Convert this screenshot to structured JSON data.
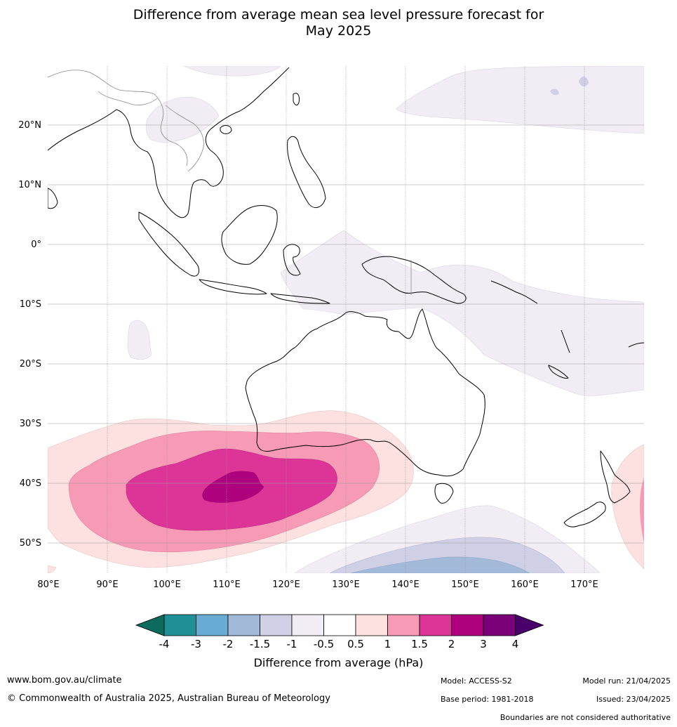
{
  "title_line1": "Difference from average mean sea level pressure forecast for",
  "title_line2": "May 2025",
  "map": {
    "lat_labels": [
      "20°N",
      "10°N",
      "0°",
      "10°S",
      "20°S",
      "30°S",
      "40°S",
      "50°S"
    ],
    "lon_labels": [
      "80°E",
      "90°E",
      "100°E",
      "110°E",
      "120°E",
      "130°E",
      "140°E",
      "150°E",
      "160°E",
      "170°E"
    ]
  },
  "colorbar": {
    "label": "Difference from average (hPa)",
    "ticks": [
      "-4",
      "-3",
      "-2",
      "-1.5",
      "-1",
      "-0.5",
      "0.5",
      "1",
      "1.5",
      "2",
      "3",
      "4"
    ],
    "colors": [
      "#0d6b5e",
      "#1f9196",
      "#68acd4",
      "#a3b9d8",
      "#cfcfe5",
      "#f2ecf4",
      "#ffffff",
      "#fde0e0",
      "#f69ab6",
      "#dd3497",
      "#ae017e",
      "#7a0177",
      "#49006a"
    ]
  },
  "footer": {
    "url": "www.bom.gov.au/climate",
    "copyright": "© Commonwealth of Australia 2025, Australian Bureau of Meteorology",
    "model": "Model: ACCESS-S2",
    "base_period": "Base period: 1981-2018",
    "model_run": "Model run: 21/04/2025",
    "issued": "Issued: 23/04/2025",
    "disclaimer": "Boundaries are not considered authoritative"
  }
}
